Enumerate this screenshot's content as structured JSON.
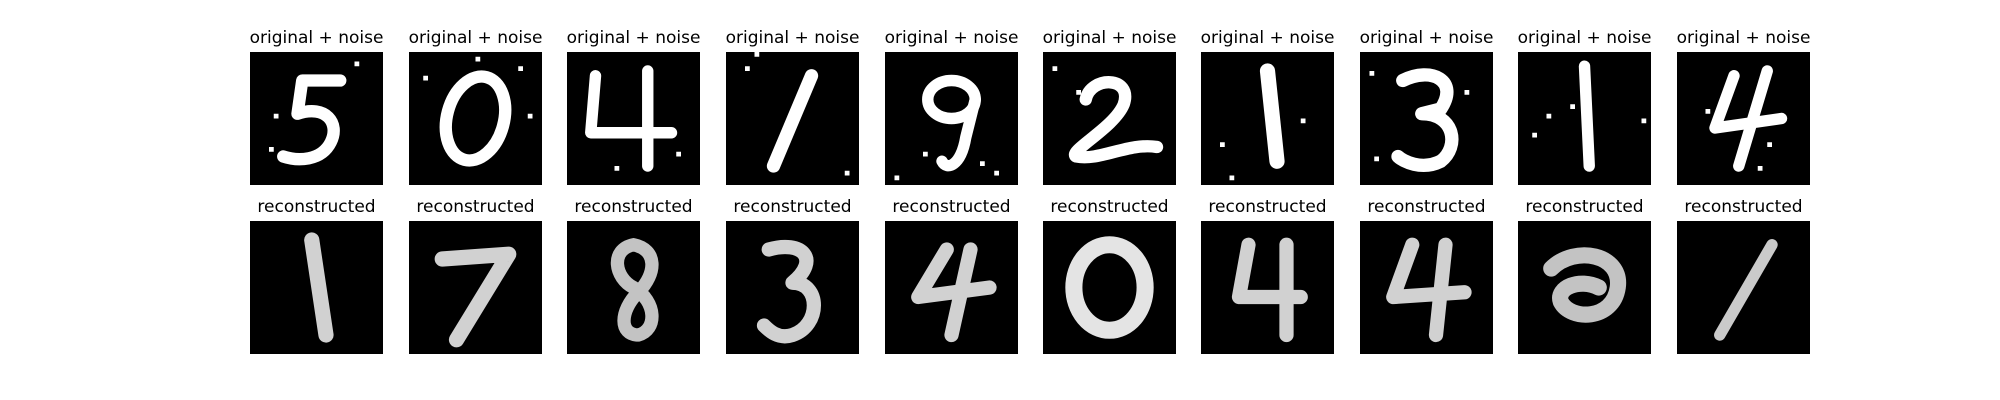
{
  "rows": [
    {
      "title": "original + noise",
      "digits": [
        "5",
        "0",
        "4",
        "1",
        "9",
        "2",
        "1",
        "3",
        "1",
        "4"
      ]
    },
    {
      "title": "reconstructed",
      "digits": [
        "1",
        "7",
        "8",
        "3",
        "4",
        "0",
        "4",
        "4",
        "2",
        "1"
      ]
    }
  ],
  "colors": {
    "background": "#000000",
    "digit": "#ffffff"
  }
}
